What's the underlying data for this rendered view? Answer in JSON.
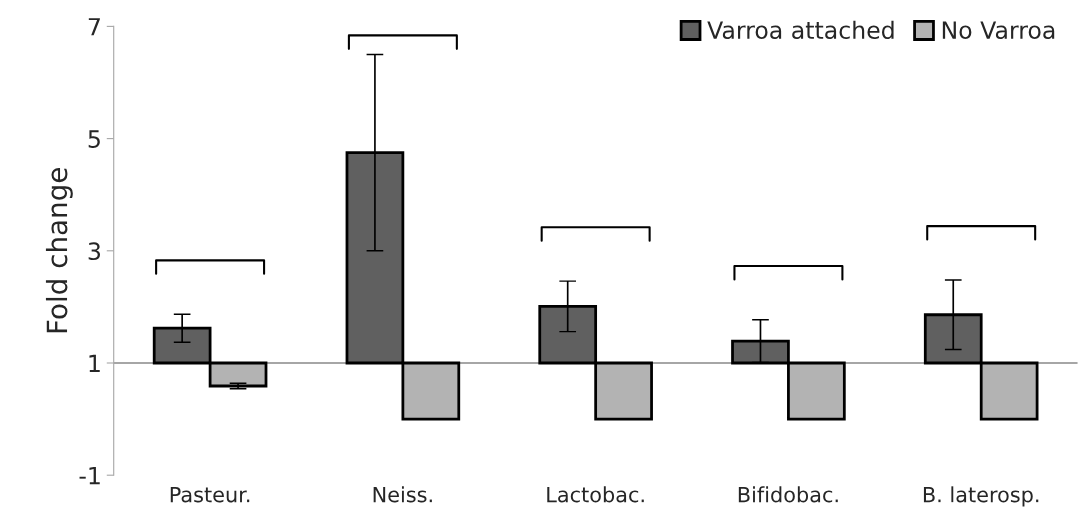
{
  "chart_data": {
    "type": "bar",
    "ylabel": "Fold change",
    "categories": [
      "Pasteur.",
      "Neiss.",
      "Lactobac.",
      "Bifidobac.",
      "B. laterosp."
    ],
    "series": [
      {
        "name": "Varroa attached",
        "color": "#606060",
        "base": [
          1,
          1,
          1,
          1,
          1
        ],
        "values": [
          0.62,
          3.75,
          1.01,
          0.39,
          0.86
        ],
        "errors": [
          0.25,
          1.75,
          0.45,
          0.38,
          0.62
        ]
      },
      {
        "name": "No Varroa",
        "color": "#b3b3b3",
        "base": [
          1,
          1,
          1,
          1,
          1
        ],
        "values": [
          -0.41,
          -1,
          -1,
          -1,
          -1
        ],
        "errors": [
          0.05,
          null,
          null,
          null,
          null
        ]
      }
    ],
    "ylim": [
      -1,
      7
    ],
    "yticks": [
      -1,
      1,
      3,
      5,
      7
    ],
    "ref_lines": [
      {
        "axis": "y",
        "value": 1,
        "color": "#a6a6a6"
      }
    ],
    "legend": "top right",
    "grid": false
  }
}
